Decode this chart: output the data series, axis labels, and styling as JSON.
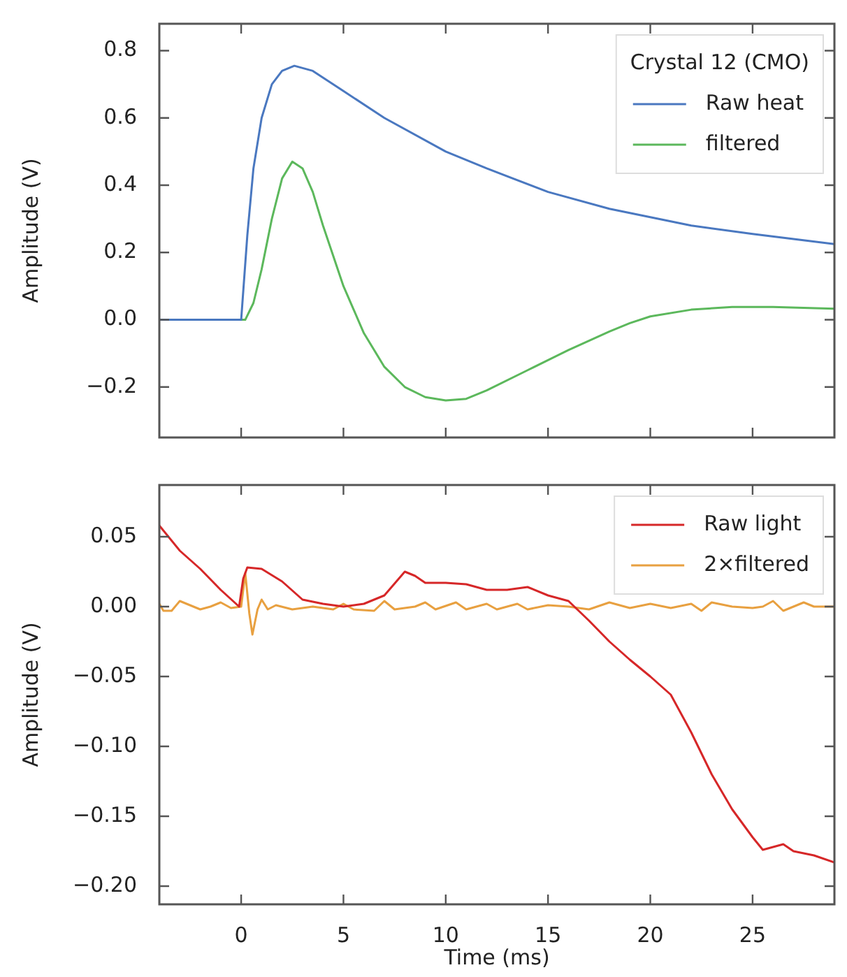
{
  "chart_data": [
    {
      "type": "line",
      "ylabel": "Amplitude (V)",
      "legend": "top right",
      "legend_title": "Crystal 12 (CMO)",
      "tick_labels": "y",
      "xlim": [
        -4,
        29
      ],
      "xticks": [
        0,
        5,
        10,
        15,
        20,
        25
      ],
      "ylim": [
        -0.35,
        0.88
      ],
      "yticks": [
        {
          "value": -0.2,
          "label": "−0.2"
        },
        {
          "value": 0,
          "label": "0.0"
        },
        {
          "value": 0.2,
          "label": "0.2"
        },
        {
          "value": 0.4,
          "label": "0.4"
        },
        {
          "value": 0.6,
          "label": "0.6"
        },
        {
          "value": 0.8,
          "label": "0.8"
        }
      ],
      "series": [
        {
          "name": "Raw heat",
          "color": "#4a78c0",
          "x": [
            -4,
            0,
            0.3,
            0.6,
            1,
            1.5,
            2,
            2.6,
            3.5,
            5,
            7,
            10,
            12,
            15,
            18,
            20,
            22,
            25,
            27,
            29
          ],
          "values": [
            0,
            0,
            0.25,
            0.45,
            0.6,
            0.7,
            0.74,
            0.755,
            0.74,
            0.68,
            0.6,
            0.5,
            0.45,
            0.38,
            0.33,
            0.305,
            0.28,
            0.255,
            0.24,
            0.225
          ]
        },
        {
          "name": "filtered",
          "color": "#5cb85c",
          "x": [
            -4,
            0.2,
            0.6,
            1,
            1.5,
            2,
            2.5,
            3,
            3.5,
            4,
            5,
            5.5,
            6,
            7,
            8,
            9,
            10,
            11,
            12,
            14,
            16,
            18,
            19,
            20,
            22,
            24,
            26,
            29
          ],
          "values": [
            0,
            0,
            0.05,
            0.15,
            0.3,
            0.42,
            0.47,
            0.45,
            0.38,
            0.28,
            0.1,
            0.03,
            -0.04,
            -0.14,
            -0.2,
            -0.23,
            -0.24,
            -0.235,
            -0.21,
            -0.15,
            -0.09,
            -0.035,
            -0.01,
            0.01,
            0.03,
            0.038,
            0.038,
            0.033
          ]
        }
      ]
    },
    {
      "type": "line",
      "xlabel": "Time (ms)",
      "ylabel": "Amplitude (V)",
      "legend": "top right",
      "xlim": [
        -4,
        29
      ],
      "xticks": [
        0,
        5,
        10,
        15,
        20,
        25
      ],
      "ylim": [
        -0.213,
        0.087
      ],
      "yticks": [
        {
          "value": -0.2,
          "label": "−0.20"
        },
        {
          "value": -0.15,
          "label": "−0.15"
        },
        {
          "value": -0.1,
          "label": "−0.10"
        },
        {
          "value": -0.05,
          "label": "−0.05"
        },
        {
          "value": 0,
          "label": "0.00"
        },
        {
          "value": 0.05,
          "label": "0.05"
        }
      ],
      "series": [
        {
          "name": "Raw light",
          "color": "#d62728",
          "x": [
            -4,
            -3,
            -2,
            -1,
            -0.1,
            0.1,
            0.3,
            1,
            2,
            3,
            4,
            5,
            6,
            7,
            8,
            8.5,
            9,
            10,
            11,
            12,
            13,
            14,
            15,
            16,
            17,
            18,
            19,
            20,
            21,
            22,
            23,
            24,
            25,
            25.5,
            26,
            26.5,
            27,
            28,
            29
          ],
          "values": [
            0.058,
            0.04,
            0.027,
            0.012,
            0,
            0.02,
            0.028,
            0.027,
            0.018,
            0.005,
            0.002,
            0,
            0.002,
            0.008,
            0.025,
            0.022,
            0.017,
            0.017,
            0.016,
            0.012,
            0.012,
            0.014,
            0.008,
            0.004,
            -0.01,
            -0.025,
            -0.038,
            -0.05,
            -0.063,
            -0.09,
            -0.12,
            -0.145,
            -0.165,
            -0.174,
            -0.172,
            -0.17,
            -0.175,
            -0.178,
            -0.183
          ]
        },
        {
          "name": "2×filtered",
          "color": "#e8a040",
          "x": [
            -4,
            -3.8,
            -3.4,
            -3,
            -2.5,
            -2,
            -1.5,
            -1,
            -0.5,
            0,
            0.2,
            0.4,
            0.55,
            0.8,
            1,
            1.3,
            1.7,
            2.5,
            3.5,
            4.5,
            5,
            5.5,
            6.5,
            7,
            7.5,
            8.5,
            9,
            9.5,
            10.5,
            11,
            12,
            12.5,
            13.5,
            14,
            15,
            16,
            17,
            18,
            19,
            20,
            21,
            22,
            22.5,
            23,
            24,
            25,
            25.5,
            26,
            26.5,
            27.5,
            28,
            29
          ],
          "values": [
            0.002,
            -0.003,
            -0.003,
            0.004,
            0.001,
            -0.002,
            0,
            0.003,
            -0.001,
            0,
            0.024,
            -0.005,
            -0.02,
            -0.002,
            0.005,
            -0.002,
            0.001,
            -0.002,
            0,
            -0.002,
            0.002,
            -0.002,
            -0.003,
            0.004,
            -0.002,
            0,
            0.003,
            -0.002,
            0.003,
            -0.002,
            0.002,
            -0.002,
            0.002,
            -0.002,
            0.001,
            0,
            -0.002,
            0.003,
            -0.001,
            0.002,
            -0.001,
            0.002,
            -0.003,
            0.003,
            0,
            -0.001,
            0,
            0.004,
            -0.003,
            0.003,
            0,
            0
          ]
        }
      ]
    }
  ]
}
